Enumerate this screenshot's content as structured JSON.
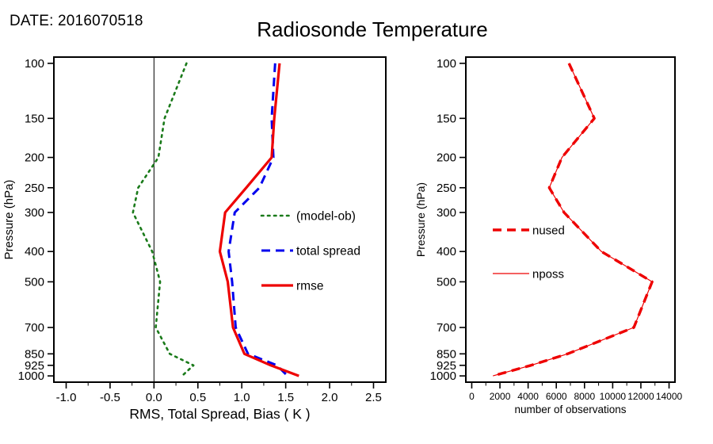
{
  "header": {
    "date_label": "DATE: 2016070518",
    "title": "Radiosonde Temperature"
  },
  "chart_data": [
    {
      "type": "line",
      "panel": "left",
      "title": "",
      "xlabel": "RMS, Total Spread, Bias ( K )",
      "ylabel": "Pressure (hPa)",
      "xlim": [
        -1.0,
        2.5
      ],
      "xticks": [
        -1.0,
        -0.5,
        0.0,
        0.5,
        1.0,
        1.5,
        2.0,
        2.5
      ],
      "ylim": [
        100,
        1000
      ],
      "yscale": "log",
      "y_inverted": true,
      "grid": false,
      "zero_line": 0.0,
      "legend_position": "inside-right",
      "yticks": [
        100,
        150,
        200,
        250,
        300,
        400,
        500,
        700,
        850,
        925,
        1000
      ],
      "pressure_levels": [
        100,
        150,
        200,
        250,
        300,
        400,
        500,
        700,
        850,
        925,
        1000
      ],
      "series": [
        {
          "name": "(model-ob)",
          "color": "#1a7a1a",
          "style": "dotted",
          "width": 2.6,
          "values": [
            0.37,
            0.12,
            0.05,
            -0.18,
            -0.24,
            -0.02,
            0.07,
            0.02,
            0.18,
            0.45,
            0.32
          ]
        },
        {
          "name": "total spread",
          "color": "#0000ee",
          "style": "dashed",
          "width": 3,
          "values": [
            1.38,
            1.34,
            1.36,
            1.2,
            0.92,
            0.85,
            0.89,
            0.93,
            1.07,
            1.4,
            1.52
          ]
        },
        {
          "name": "rmse",
          "color": "#ee0000",
          "style": "solid",
          "width": 3.2,
          "values": [
            1.43,
            1.37,
            1.34,
            1.05,
            0.81,
            0.75,
            0.84,
            0.9,
            1.03,
            1.33,
            1.65
          ]
        }
      ]
    },
    {
      "type": "line",
      "panel": "right",
      "title": "",
      "xlabel": "number of observations",
      "ylabel": "Pressure (hPa)",
      "xlim": [
        0,
        14000
      ],
      "xticks": [
        0,
        2000,
        4000,
        6000,
        8000,
        10000,
        12000,
        14000
      ],
      "ylim": [
        100,
        1000
      ],
      "yscale": "log",
      "y_inverted": true,
      "grid": false,
      "legend_position": "inside-left",
      "yticks": [
        100,
        150,
        200,
        250,
        300,
        400,
        500,
        700,
        850,
        925,
        1000
      ],
      "pressure_levels": [
        100,
        150,
        200,
        250,
        300,
        400,
        500,
        700,
        850,
        925,
        1000
      ],
      "series": [
        {
          "name": "nused",
          "color": "#ee0000",
          "style": "dashed",
          "width": 3.4,
          "values": [
            6900,
            8700,
            6400,
            5500,
            6550,
            9200,
            12800,
            11500,
            6800,
            4200,
            1500
          ]
        },
        {
          "name": "nposs",
          "color": "#ee0000",
          "style": "solid",
          "width": 1.2,
          "values": [
            6900,
            8700,
            6400,
            5500,
            6550,
            9200,
            12800,
            11500,
            6800,
            4200,
            1500
          ]
        }
      ]
    }
  ]
}
